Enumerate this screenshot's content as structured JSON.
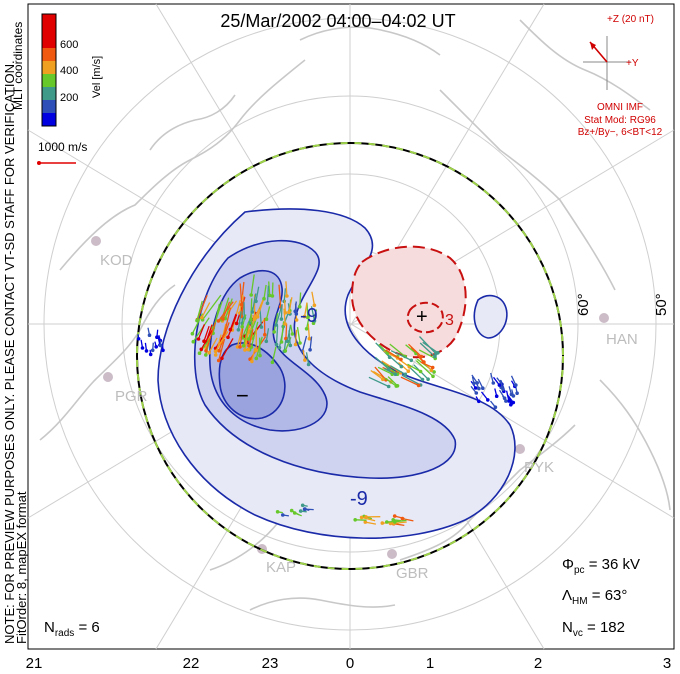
{
  "title": "25/Mar/2002 04:00–04:02 UT",
  "coordinates_label": "MLT coordinates",
  "colorbar": {
    "label": "Vel [m/s]",
    "ticks": [
      "600",
      "400",
      "200"
    ],
    "colors": [
      "#0000e0",
      "#2f4fb8",
      "#3f9a8a",
      "#66c82a",
      "#f0a020",
      "#f05a10",
      "#e00000"
    ]
  },
  "scale_vector": {
    "label": "1000 m/s"
  },
  "imf": {
    "bz_label": "+Z (20 nT)",
    "by_label": "+Y",
    "source": "OMNI IMF",
    "model": "Stat Mod: RG96",
    "condition": "Bz+/By−, 6<BT<12",
    "color": "#d00000"
  },
  "notes": {
    "preview": "NOTE: FOR PREVIEW PURPOSES ONLY. PLEASE CONTACT VT-SD STAFF FOR VERIFICATION.",
    "fit": "FitOrder: 8, mapEX format"
  },
  "stats": {
    "phi_pc": "36 kV",
    "lambda_hm": "63°",
    "n_vc": "182",
    "n_rads": "6"
  },
  "stat_labels": {
    "phi": "Φ",
    "phi_sub": "pc",
    "lambda": "Λ",
    "lambda_sub": "HM",
    "nvc": "N",
    "nvc_sub": "vc",
    "nrads": "N",
    "nrads_sub": "rads"
  },
  "latitude_labels": [
    "60°",
    "50°"
  ],
  "mlt_ticks": [
    "21",
    "22",
    "23",
    "0",
    "1",
    "2",
    "3"
  ],
  "stations": [
    "KOD",
    "PGR",
    "KAP",
    "GBR",
    "PYK",
    "HAN"
  ],
  "contours": {
    "minus_marker": "−",
    "plus_marker": "+",
    "labels": [
      "-9",
      "-9",
      "3"
    ],
    "negative_color": "#1a2aa8",
    "positive_color": "#c81010"
  }
}
